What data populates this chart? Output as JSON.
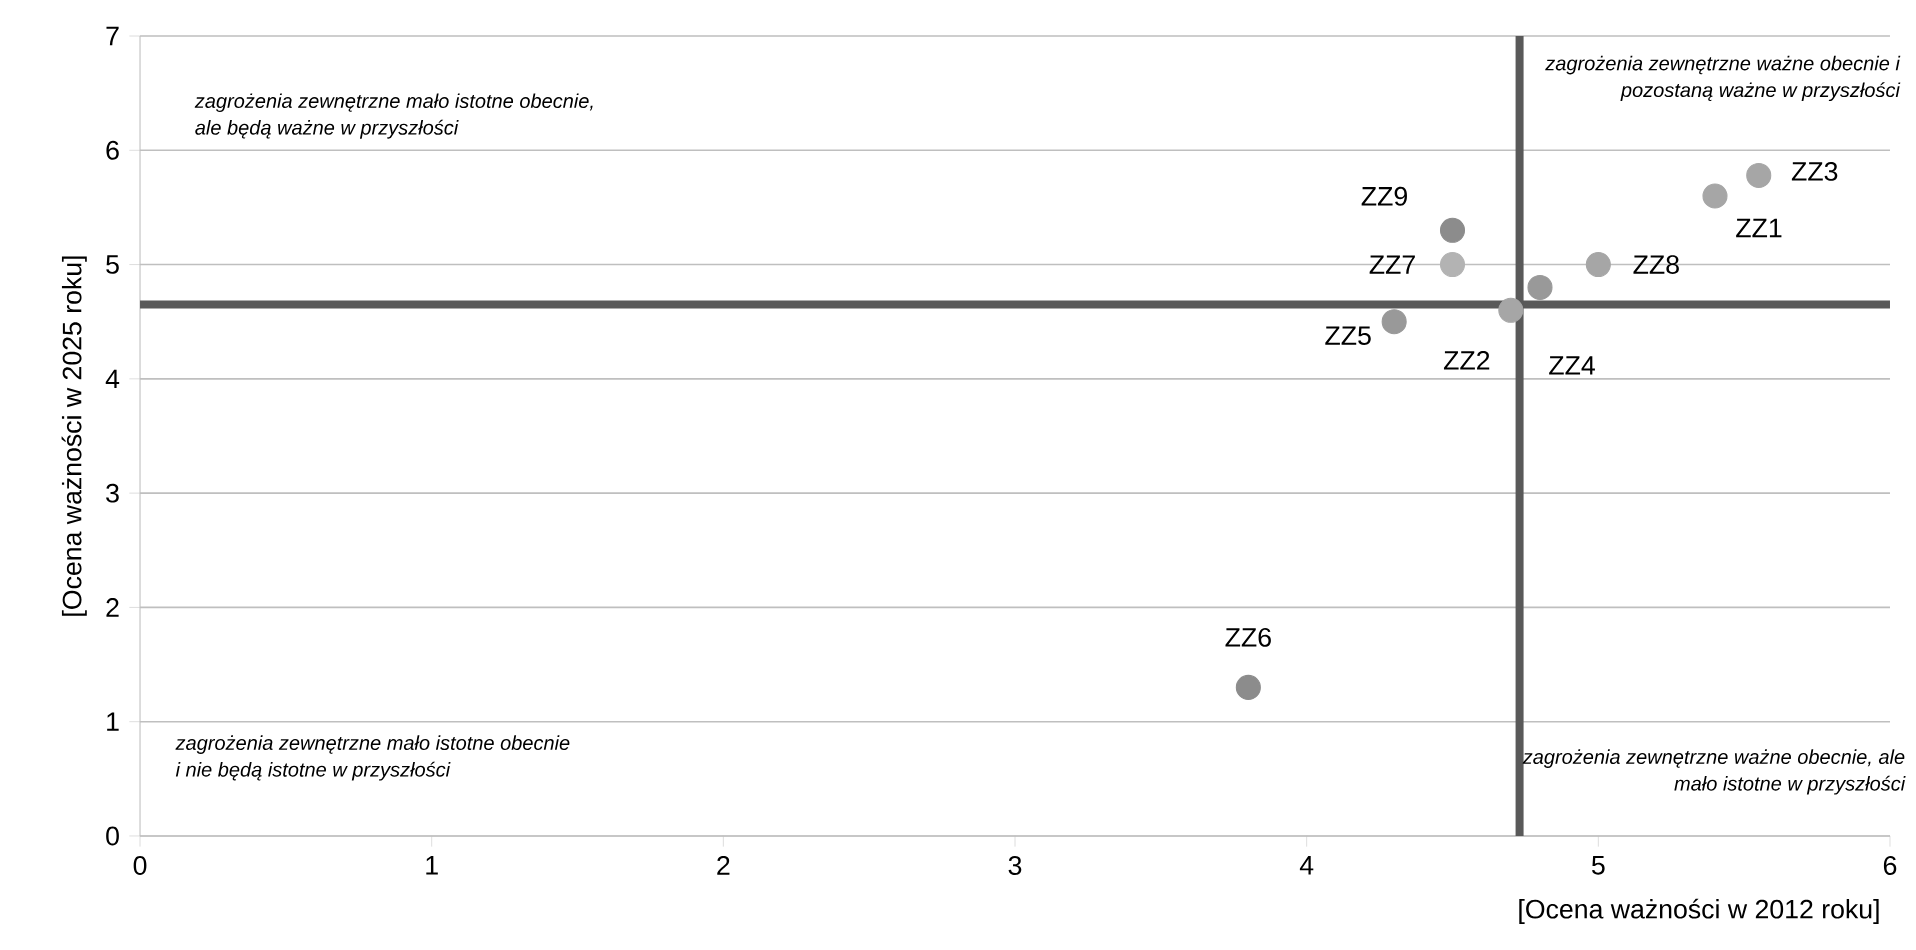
{
  "chart_data": {
    "type": "scatter",
    "grid": "y",
    "x": [
      5.4,
      4.7,
      5.55,
      4.8,
      4.3,
      3.8,
      4.5,
      5.0,
      4.5
    ],
    "values": [
      5.6,
      4.6,
      5.78,
      4.8,
      4.5,
      1.3,
      5.0,
      5.0,
      5.3
    ],
    "colors": [
      "#a6a6a6",
      "#a6a6a6",
      "#a6a6a6",
      "#999999",
      "#999999",
      "#8c8c8c",
      "#b3b3b3",
      "#a6a6a6",
      "#8c8c8c"
    ],
    "xlim": [
      0,
      6
    ],
    "ylim": [
      0,
      7
    ],
    "xticks": [
      0,
      1,
      2,
      3,
      4,
      5,
      6
    ],
    "yticks": [
      0,
      1,
      2,
      3,
      4,
      5,
      6,
      7
    ],
    "xlabel": "[Ocena ważności w 2012 roku]",
    "ylabel": "[Ocena ważności w 2025 roku]",
    "ref_lines": [
      {
        "axis": "y",
        "value": 4.65,
        "color": "#595959"
      },
      {
        "axis": "x",
        "value": 4.73,
        "color": "#595959"
      }
    ],
    "annotations": [
      "zagrożenia zewnętrzne mało istotne obecnie, ale będą ważne w przyszłości",
      "zagrożenia zewnętrzne ważne obecnie i pozostaną ważne w przyszłości",
      "zagrożenia zewnętrzne mało istotne obecnie i nie będą istotne w przyszłości",
      "zagrożenia zewnętrzne ważne obecnie, ale mało istotne w przyszłości",
      {
        "text": "ZZ1",
        "x": 5.4,
        "y": 5.6
      },
      {
        "text": "ZZ2",
        "x": 4.7,
        "y": 4.6
      },
      {
        "text": "ZZ3",
        "x": 5.55,
        "y": 5.78
      },
      {
        "text": "ZZ4",
        "x": 4.8,
        "y": 4.8
      },
      {
        "text": "ZZ5",
        "x": 4.3,
        "y": 4.5
      },
      {
        "text": "ZZ6",
        "x": 3.8,
        "y": 1.3
      },
      {
        "text": "ZZ7",
        "x": 4.5,
        "y": 5.0
      },
      {
        "text": "ZZ8",
        "x": 5.0,
        "y": 5.0
      },
      {
        "text": "ZZ9",
        "x": 4.5,
        "y": 5.3
      }
    ]
  }
}
